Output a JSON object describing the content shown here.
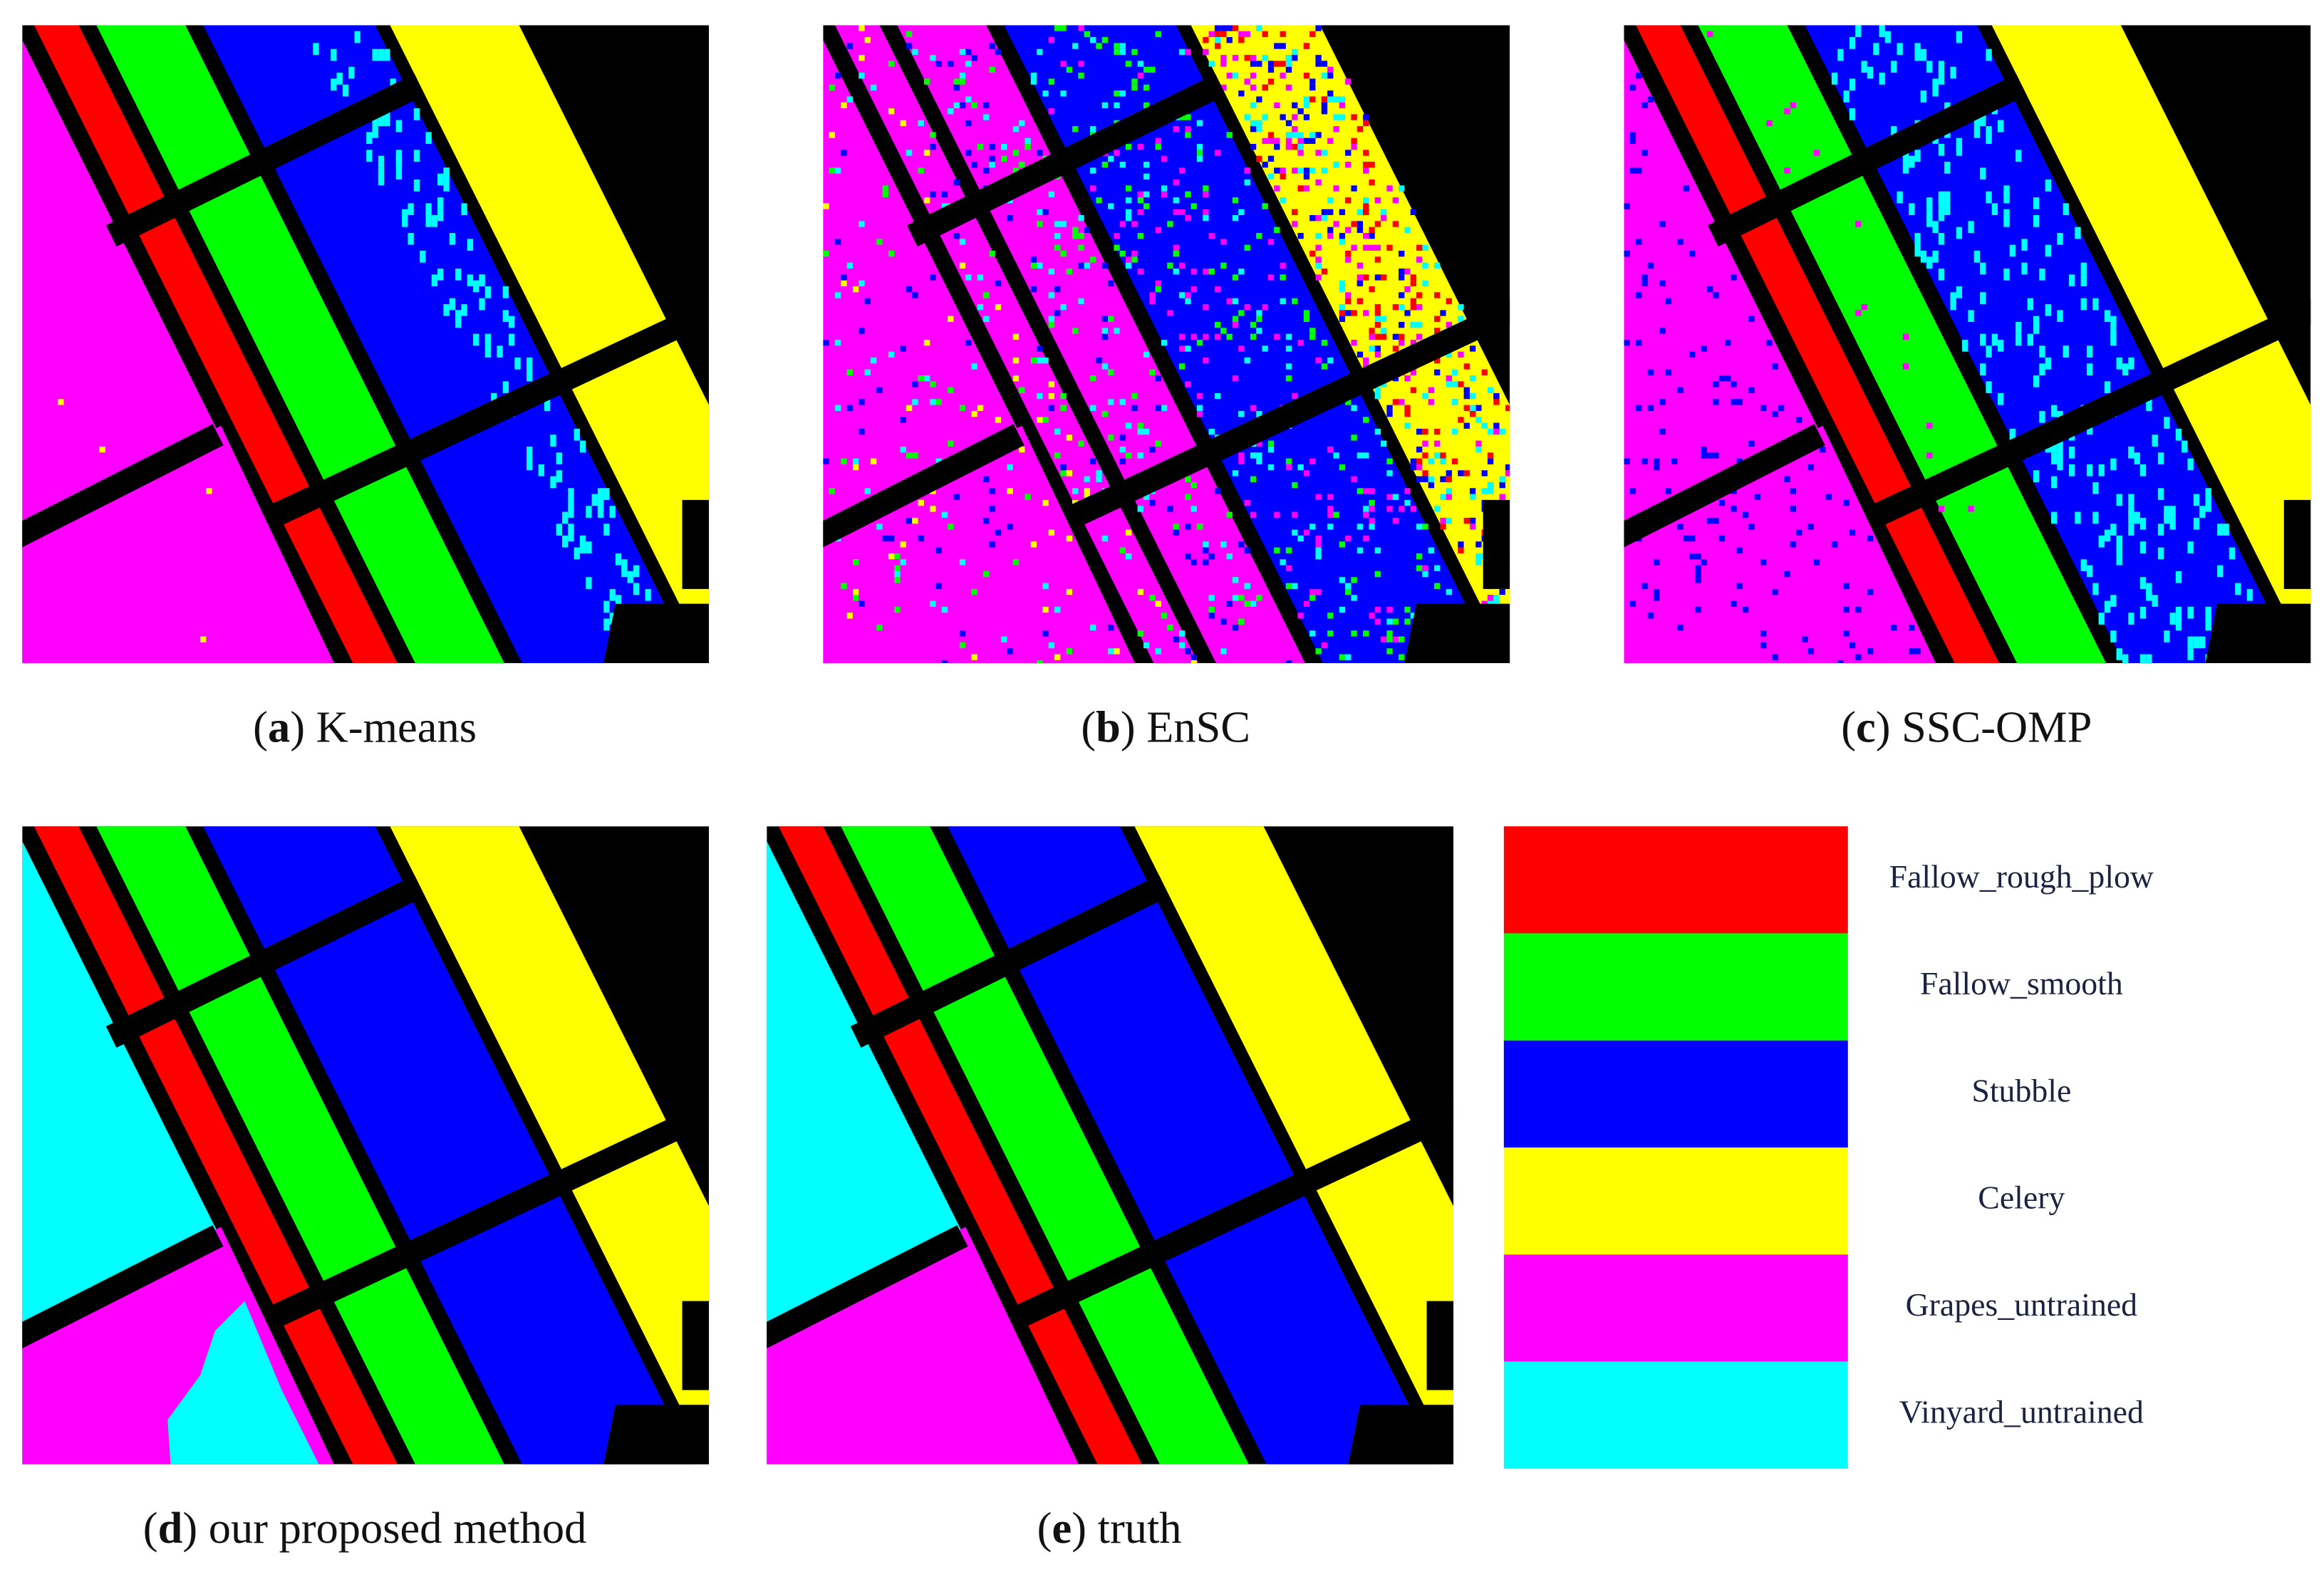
{
  "panels": [
    {
      "caption": [
        "(",
        "a",
        ") K-means"
      ]
    },
    {
      "caption": [
        "(",
        "b",
        ") EnSC"
      ]
    },
    {
      "caption": [
        "(",
        "c",
        ") SSC-OMP"
      ]
    },
    {
      "caption": [
        "(",
        "d",
        ") our proposed method"
      ]
    },
    {
      "caption": [
        "(",
        "e",
        ") truth"
      ]
    }
  ],
  "legend": [
    {
      "label": "Fallow_rough_plow",
      "color": "#ff0000"
    },
    {
      "label": "Fallow_smooth",
      "color": "#00ff00"
    },
    {
      "label": "Stubble",
      "color": "#0000ff"
    },
    {
      "label": "Celery",
      "color": "#ffff00"
    },
    {
      "label": "Grapes_untrained",
      "color": "#ff00ff"
    },
    {
      "label": "Vinyard_untrained",
      "color": "#00ffff"
    }
  ]
}
